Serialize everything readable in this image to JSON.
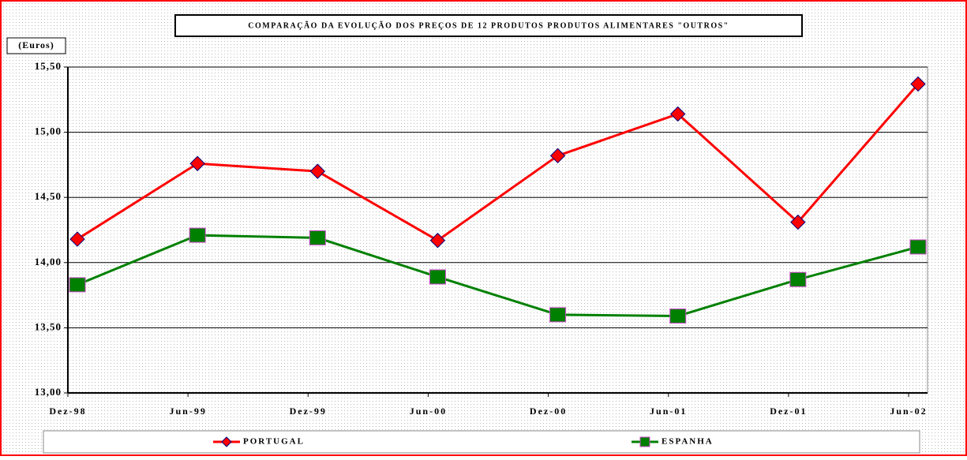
{
  "chart_data": {
    "type": "line",
    "title": "COMPARAÇÃO DA EVOLUÇÃO DOS PREÇOS DE 12 PRODUTOS PRODUTOS ALIMENTARES \"OUTROS\"",
    "y_label": "(Euros)",
    "categories": [
      "Dez-98",
      "Jun-99",
      "Dez-99",
      "Jun-00",
      "Dez-00",
      "Jun-01",
      "Dez-01",
      "Jun-02"
    ],
    "series": [
      {
        "name": "PORTUGAL",
        "color": "#ff0000",
        "marker_color": "#ff0000",
        "values": [
          14.18,
          14.76,
          14.7,
          14.17,
          14.82,
          15.14,
          14.31,
          15.37
        ]
      },
      {
        "name": "ESPANHA",
        "color": "#008000",
        "marker_color": "#008000",
        "values": [
          13.83,
          14.21,
          14.19,
          13.89,
          13.6,
          13.59,
          13.87,
          14.12
        ]
      }
    ],
    "ylim": [
      13,
      15.5
    ],
    "yticks": [
      {
        "value": 13,
        "label": "13,00"
      },
      {
        "value": 13.5,
        "label": "13,50"
      },
      {
        "value": 14,
        "label": "14,00"
      },
      {
        "value": 14.5,
        "label": "14,50"
      },
      {
        "value": 15,
        "label": "15,00"
      },
      {
        "value": 15.5,
        "label": "15,50"
      }
    ],
    "grid": true
  }
}
